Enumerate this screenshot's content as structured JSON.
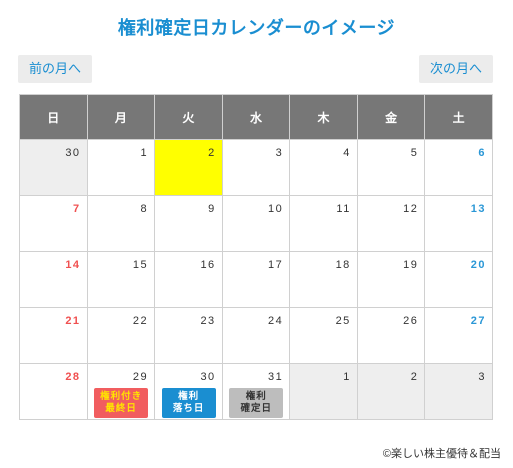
{
  "title": "権利確定日カレンダーのイメージ",
  "nav": {
    "prev": "前の月へ",
    "next": "次の月へ"
  },
  "weekdays": [
    "日",
    "月",
    "火",
    "水",
    "木",
    "金",
    "土"
  ],
  "weeks": [
    [
      {
        "d": "30",
        "o": true
      },
      {
        "d": "1"
      },
      {
        "d": "2",
        "today": true
      },
      {
        "d": "3"
      },
      {
        "d": "4"
      },
      {
        "d": "5"
      },
      {
        "d": "6"
      }
    ],
    [
      {
        "d": "7"
      },
      {
        "d": "8"
      },
      {
        "d": "9"
      },
      {
        "d": "10"
      },
      {
        "d": "11"
      },
      {
        "d": "12"
      },
      {
        "d": "13"
      }
    ],
    [
      {
        "d": "14"
      },
      {
        "d": "15"
      },
      {
        "d": "16"
      },
      {
        "d": "17"
      },
      {
        "d": "18"
      },
      {
        "d": "19"
      },
      {
        "d": "20"
      }
    ],
    [
      {
        "d": "21"
      },
      {
        "d": "22"
      },
      {
        "d": "23"
      },
      {
        "d": "24"
      },
      {
        "d": "25"
      },
      {
        "d": "26"
      },
      {
        "d": "27"
      }
    ],
    [
      {
        "d": "28"
      },
      {
        "d": "29",
        "tag": "red",
        "label": "権利付き\n最終日"
      },
      {
        "d": "30",
        "tag": "blue",
        "label": "権利\n落ち日"
      },
      {
        "d": "31",
        "tag": "gray",
        "label": "権利\n確定日"
      },
      {
        "d": "1",
        "o": true
      },
      {
        "d": "2",
        "o": true
      },
      {
        "d": "3",
        "o": true
      }
    ]
  ],
  "colors": {
    "accent": "#1a8ed1",
    "sunday": "#f05050",
    "saturday": "#2a97d6",
    "today": "#ffff00",
    "header": "#777777"
  },
  "copyright": "©楽しい株主優待＆配当"
}
